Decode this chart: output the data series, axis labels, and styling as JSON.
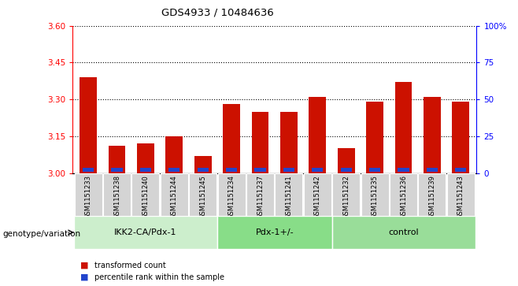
{
  "title": "GDS4933 / 10484636",
  "samples": [
    "GSM1151233",
    "GSM1151238",
    "GSM1151240",
    "GSM1151244",
    "GSM1151245",
    "GSM1151234",
    "GSM1151237",
    "GSM1151241",
    "GSM1151242",
    "GSM1151232",
    "GSM1151235",
    "GSM1151236",
    "GSM1151239",
    "GSM1151243"
  ],
  "red_values": [
    3.39,
    3.11,
    3.12,
    3.15,
    3.07,
    3.28,
    3.25,
    3.25,
    3.31,
    3.1,
    3.29,
    3.37,
    3.31,
    3.29
  ],
  "blue_heights": [
    0.016,
    0.016,
    0.016,
    0.016,
    0.016,
    0.016,
    0.016,
    0.016,
    0.016,
    0.016,
    0.016,
    0.016,
    0.016,
    0.016
  ],
  "ymin": 3.0,
  "ymax": 3.6,
  "yticks_left": [
    3.0,
    3.15,
    3.3,
    3.45,
    3.6
  ],
  "yticks_right": [
    0,
    25,
    50,
    75,
    100
  ],
  "groups": [
    {
      "label": "IKK2-CA/Pdx-1",
      "start": 0,
      "end": 5,
      "color": "#cceecc"
    },
    {
      "label": "Pdx-1+/-",
      "start": 5,
      "end": 9,
      "color": "#88dd88"
    },
    {
      "label": "control",
      "start": 9,
      "end": 14,
      "color": "#99dd99"
    }
  ],
  "group_row_label": "genotype/variation",
  "legend_red": "transformed count",
  "legend_blue": "percentile rank within the sample",
  "bar_color_red": "#cc1100",
  "bar_color_blue": "#2244cc",
  "bar_width": 0.6,
  "cell_color": "#d4d4d4",
  "cell_edge_color": "#ffffff"
}
